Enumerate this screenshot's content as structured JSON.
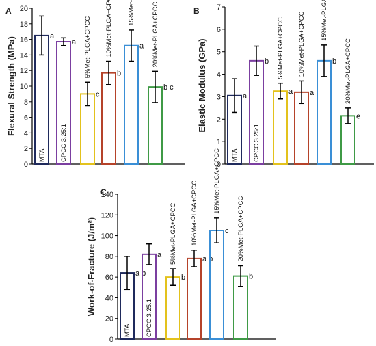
{
  "chart_data": [
    {
      "panel": "A",
      "type": "bar",
      "ylabel": "Flexural Strength (MPa)",
      "ylim": [
        0,
        20
      ],
      "yticks": [
        0,
        2,
        4,
        6,
        8,
        10,
        12,
        14,
        16,
        18,
        20
      ],
      "bars": [
        {
          "label": "MTA",
          "value": 16.5,
          "error": 2.5,
          "sig": "a",
          "color": "#1f2a5c"
        },
        {
          "label": "CPCC 3.25:1",
          "value": 15.7,
          "error": 0.5,
          "sig": "a",
          "color": "#7b3fa0"
        },
        {
          "label": "5%Met-PLGA+CPCC",
          "value": 9.0,
          "error": 1.5,
          "sig": "c",
          "color": "#e3c21d"
        },
        {
          "label": "10%Met-PLGA+CPCC",
          "value": 11.7,
          "error": 1.5,
          "sig": "b",
          "color": "#b5432a"
        },
        {
          "label": "15%Met-PLGA+CPCC",
          "value": 15.2,
          "error": 2.0,
          "sig": "a",
          "color": "#3a8fd6"
        },
        {
          "label": "20%Met-PLGA+CPCC",
          "value": 9.9,
          "error": 2.0,
          "sig": "b c",
          "color": "#3f9a46"
        }
      ]
    },
    {
      "panel": "B",
      "type": "bar",
      "ylabel": "Elastic Modulus (GPa)",
      "ylim": [
        0,
        7
      ],
      "yticks": [
        0,
        1,
        2,
        3,
        4,
        5,
        6,
        7
      ],
      "bars": [
        {
          "label": "MTA",
          "value": 3.05,
          "error": 0.75,
          "sig": "a",
          "color": "#1f2a5c"
        },
        {
          "label": "CPCC 3.25:1",
          "value": 4.6,
          "error": 0.65,
          "sig": "b",
          "color": "#7b3fa0"
        },
        {
          "label": "5%Met-PLGA+CPCC",
          "value": 3.25,
          "error": 0.35,
          "sig": "a",
          "color": "#e3c21d"
        },
        {
          "label": "10%Met-PLGA+CPCC",
          "value": 3.2,
          "error": 0.5,
          "sig": "a",
          "color": "#b5432a"
        },
        {
          "label": "15%Met-PLGA+CPCC",
          "value": 4.6,
          "error": 0.7,
          "sig": "b",
          "color": "#3a8fd6"
        },
        {
          "label": "20%Met-PLGA+CPCC",
          "value": 2.15,
          "error": 0.35,
          "sig": "e",
          "color": "#3f9a46"
        }
      ]
    },
    {
      "panel": "C",
      "type": "bar",
      "ylabel": "Work-of-Fracture (J/m²)",
      "ylim": [
        0,
        140
      ],
      "yticks": [
        0,
        20,
        40,
        60,
        80,
        100,
        120,
        140
      ],
      "bars": [
        {
          "label": "MTA",
          "value": 64,
          "error": 16,
          "sig": "a b",
          "color": "#1f2a5c"
        },
        {
          "label": "CPCC 3.25:1",
          "value": 82,
          "error": 10,
          "sig": "a",
          "color": "#7b3fa0"
        },
        {
          "label": "5%Met-PLGA+CPCC",
          "value": 60,
          "error": 8,
          "sig": "b",
          "color": "#e3c21d"
        },
        {
          "label": "10%Met-PLGA+CPCC",
          "value": 78,
          "error": 8,
          "sig": "a b",
          "color": "#b5432a"
        },
        {
          "label": "15%Met-PLGA+CPCC",
          "value": 105,
          "error": 12,
          "sig": "c",
          "color": "#3a8fd6"
        },
        {
          "label": "20%Met-PLGA+CPCC",
          "value": 61,
          "error": 10,
          "sig": "b",
          "color": "#3f9a46"
        }
      ]
    }
  ]
}
